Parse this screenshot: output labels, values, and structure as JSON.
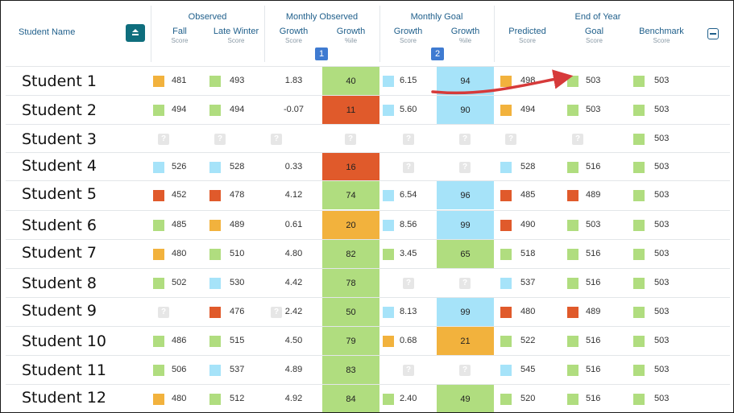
{
  "header": {
    "student_name": "Student Name",
    "groups": [
      "Observed",
      "Monthly Observed",
      "Monthly Goal",
      "End of Year"
    ],
    "columns": [
      {
        "t": "Fall",
        "s": "Score"
      },
      {
        "t": "Late Winter",
        "s": "Score"
      },
      {
        "t": "Growth",
        "s": "Score"
      },
      {
        "t": "Growth",
        "s": "%ile"
      },
      {
        "t": "Growth",
        "s": "Score"
      },
      {
        "t": "Growth",
        "s": "%ile"
      },
      {
        "t": "Predicted",
        "s": "Score"
      },
      {
        "t": "Goal",
        "s": "Score"
      },
      {
        "t": "Benchmark",
        "s": "Score"
      }
    ],
    "badges": [
      "1",
      "2"
    ],
    "icons": {
      "sort": "sort-icon",
      "collapse": "collapse-icon",
      "unknown": "question-icon"
    }
  },
  "colors": {
    "green": "#b0dd7f",
    "orange": "#f2b23d",
    "red": "#e05a2b",
    "blue": "#a6e3f9",
    "gray": "#e6e6e6",
    "arrow": "#d63a3a"
  },
  "rows": [
    {
      "name": "Student 1",
      "fall": {
        "v": "481",
        "c": "o"
      },
      "lw": {
        "v": "493",
        "c": "g"
      },
      "og": {
        "v": "1.83"
      },
      "opct": {
        "v": "40",
        "c": "g"
      },
      "gg": {
        "v": "6.15",
        "c": "b"
      },
      "gpct": {
        "v": "94",
        "c": "b"
      },
      "pred": {
        "v": "498",
        "c": "o"
      },
      "goal": {
        "v": "503",
        "c": "g"
      },
      "bench": {
        "v": "503",
        "c": "g"
      }
    },
    {
      "name": "Student 2",
      "fall": {
        "v": "494",
        "c": "g"
      },
      "lw": {
        "v": "494",
        "c": "g"
      },
      "og": {
        "v": "-0.07"
      },
      "opct": {
        "v": "11",
        "c": "r"
      },
      "gg": {
        "v": "5.60",
        "c": "b"
      },
      "gpct": {
        "v": "90",
        "c": "b"
      },
      "pred": {
        "v": "494",
        "c": "o"
      },
      "goal": {
        "v": "503",
        "c": "g"
      },
      "bench": {
        "v": "503",
        "c": "g"
      }
    },
    {
      "name": "Student 3",
      "fall": {
        "q": true
      },
      "lw": {
        "q": true
      },
      "og": {
        "q": true
      },
      "opct": {
        "q": true
      },
      "gg": {
        "q": true
      },
      "gpct": {
        "q": true
      },
      "pred": {
        "q": true
      },
      "goal": {
        "q": true
      },
      "bench": {
        "v": "503",
        "c": "g"
      }
    },
    {
      "name": "Student 4",
      "fall": {
        "v": "526",
        "c": "b"
      },
      "lw": {
        "v": "528",
        "c": "b"
      },
      "og": {
        "v": "0.33"
      },
      "opct": {
        "v": "16",
        "c": "r"
      },
      "gg": {
        "q": true
      },
      "gpct": {
        "q": true
      },
      "pred": {
        "v": "528",
        "c": "b"
      },
      "goal": {
        "v": "516",
        "c": "g"
      },
      "bench": {
        "v": "503",
        "c": "g"
      }
    },
    {
      "name": "Student 5",
      "fall": {
        "v": "452",
        "c": "r"
      },
      "lw": {
        "v": "478",
        "c": "r"
      },
      "og": {
        "v": "4.12"
      },
      "opct": {
        "v": "74",
        "c": "g"
      },
      "gg": {
        "v": "6.54",
        "c": "b"
      },
      "gpct": {
        "v": "96",
        "c": "b"
      },
      "pred": {
        "v": "485",
        "c": "r"
      },
      "goal": {
        "v": "489",
        "c": "r"
      },
      "bench": {
        "v": "503",
        "c": "g"
      }
    },
    {
      "name": "Student 6",
      "fall": {
        "v": "485",
        "c": "g"
      },
      "lw": {
        "v": "489",
        "c": "o"
      },
      "og": {
        "v": "0.61"
      },
      "opct": {
        "v": "20",
        "c": "o"
      },
      "gg": {
        "v": "8.56",
        "c": "b"
      },
      "gpct": {
        "v": "99",
        "c": "b"
      },
      "pred": {
        "v": "490",
        "c": "r"
      },
      "goal": {
        "v": "503",
        "c": "g"
      },
      "bench": {
        "v": "503",
        "c": "g"
      }
    },
    {
      "name": "Student 7",
      "fall": {
        "v": "480",
        "c": "o"
      },
      "lw": {
        "v": "510",
        "c": "g"
      },
      "og": {
        "v": "4.80"
      },
      "opct": {
        "v": "82",
        "c": "g"
      },
      "gg": {
        "v": "3.45",
        "c": "g"
      },
      "gpct": {
        "v": "65",
        "c": "g"
      },
      "pred": {
        "v": "518",
        "c": "g"
      },
      "goal": {
        "v": "516",
        "c": "g"
      },
      "bench": {
        "v": "503",
        "c": "g"
      }
    },
    {
      "name": "Student 8",
      "fall": {
        "v": "502",
        "c": "g"
      },
      "lw": {
        "v": "530",
        "c": "b"
      },
      "og": {
        "v": "4.42"
      },
      "opct": {
        "v": "78",
        "c": "g"
      },
      "gg": {
        "q": true
      },
      "gpct": {
        "q": true
      },
      "pred": {
        "v": "537",
        "c": "b"
      },
      "goal": {
        "v": "516",
        "c": "g"
      },
      "bench": {
        "v": "503",
        "c": "g"
      }
    },
    {
      "name": "Student 9",
      "fall": {
        "q": true
      },
      "lw": {
        "v": "476",
        "c": "r"
      },
      "og": {
        "v": "2.42",
        "q": true
      },
      "opct": {
        "v": "50",
        "c": "g"
      },
      "gg": {
        "v": "8.13",
        "c": "b"
      },
      "gpct": {
        "v": "99",
        "c": "b"
      },
      "pred": {
        "v": "480",
        "c": "r"
      },
      "goal": {
        "v": "489",
        "c": "r"
      },
      "bench": {
        "v": "503",
        "c": "g"
      }
    },
    {
      "name": "Student 10",
      "fall": {
        "v": "486",
        "c": "g"
      },
      "lw": {
        "v": "515",
        "c": "g"
      },
      "og": {
        "v": "4.50"
      },
      "opct": {
        "v": "79",
        "c": "g"
      },
      "gg": {
        "v": "0.68",
        "c": "o"
      },
      "gpct": {
        "v": "21",
        "c": "o"
      },
      "pred": {
        "v": "522",
        "c": "g"
      },
      "goal": {
        "v": "516",
        "c": "g"
      },
      "bench": {
        "v": "503",
        "c": "g"
      }
    },
    {
      "name": "Student 11",
      "fall": {
        "v": "506",
        "c": "g"
      },
      "lw": {
        "v": "537",
        "c": "b"
      },
      "og": {
        "v": "4.89"
      },
      "opct": {
        "v": "83",
        "c": "g"
      },
      "gg": {
        "q": true
      },
      "gpct": {
        "q": true
      },
      "pred": {
        "v": "545",
        "c": "b"
      },
      "goal": {
        "v": "516",
        "c": "g"
      },
      "bench": {
        "v": "503",
        "c": "g"
      }
    },
    {
      "name": "Student 12",
      "fall": {
        "v": "480",
        "c": "o"
      },
      "lw": {
        "v": "512",
        "c": "g"
      },
      "og": {
        "v": "4.92"
      },
      "opct": {
        "v": "84",
        "c": "g"
      },
      "gg": {
        "v": "2.40",
        "c": "g"
      },
      "gpct": {
        "v": "49",
        "c": "g"
      },
      "pred": {
        "v": "520",
        "c": "g"
      },
      "goal": {
        "v": "516",
        "c": "g"
      },
      "bench": {
        "v": "503",
        "c": "g"
      }
    }
  ]
}
